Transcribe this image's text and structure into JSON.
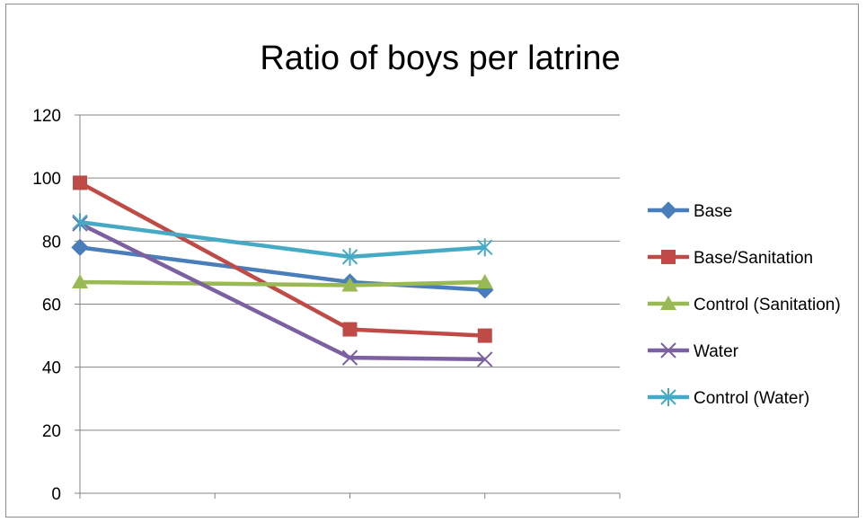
{
  "chart_data": {
    "type": "line",
    "title": "Ratio of boys per latrine",
    "xlabel": "",
    "ylabel": "",
    "ylim": [
      0,
      120
    ],
    "yticks": [
      "0",
      "20",
      "40",
      "60",
      "80",
      "100",
      "120"
    ],
    "categories": [
      "",
      "",
      "",
      ""
    ],
    "grid": "horizontal",
    "legend_position": "right",
    "series": [
      {
        "name": "Base",
        "color": "#4a7ebb",
        "marker": "diamond",
        "values": [
          78,
          null,
          67,
          64.5
        ]
      },
      {
        "name": "Base/Sanitation",
        "color": "#be4b48",
        "marker": "square",
        "values": [
          98.5,
          null,
          52,
          50
        ]
      },
      {
        "name": "Control (Sanitation)",
        "color": "#98b954",
        "marker": "triangle",
        "values": [
          67,
          null,
          66,
          67
        ]
      },
      {
        "name": "Water",
        "color": "#7d60a0",
        "marker": "x",
        "values": [
          85.5,
          null,
          43,
          42.5
        ]
      },
      {
        "name": "Control (Water)",
        "color": "#46aac5",
        "marker": "star",
        "values": [
          86,
          null,
          75,
          78
        ]
      }
    ]
  }
}
